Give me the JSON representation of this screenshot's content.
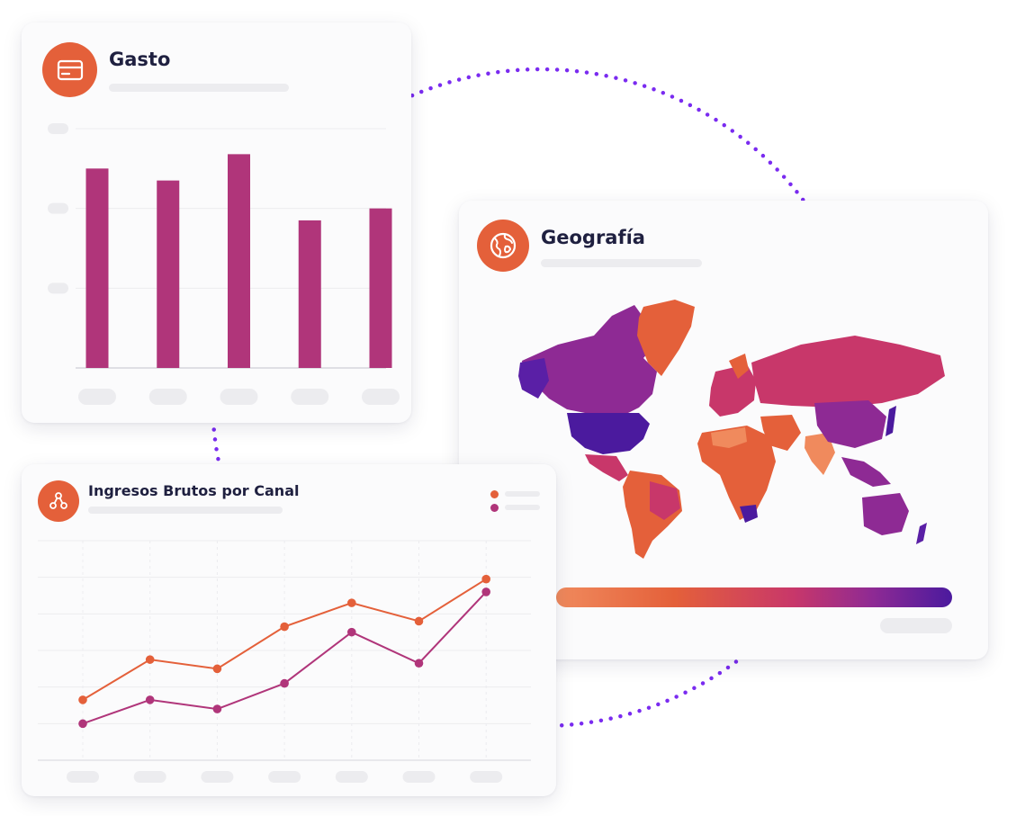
{
  "colors": {
    "orange": "#e4603a",
    "magenta": "#b0357a",
    "purple_dark": "#4b1a9e",
    "connector": "#7a2bf0",
    "skeleton": "#ececef"
  },
  "cards": {
    "gasto": {
      "title": "Gasto",
      "icon": "credit-card-icon"
    },
    "geografia": {
      "title": "Geografía",
      "icon": "globe-icon"
    },
    "ingresos": {
      "title": "Ingresos Brutos por Canal",
      "icon": "network-icon"
    }
  },
  "chart_data": [
    {
      "type": "bar",
      "categories": [
        "",
        "",
        "",
        "",
        ""
      ],
      "values": [
        2.5,
        2.35,
        2.68,
        1.85,
        2.0
      ],
      "ylim": [
        0,
        3
      ],
      "grid": true,
      "color": "#b0357a"
    },
    {
      "type": "line",
      "x": [
        "",
        "",
        "",
        "",
        "",
        "",
        ""
      ],
      "series": [
        {
          "values": [
            1.65,
            2.75,
            2.5,
            3.65,
            4.3,
            3.8,
            4.95
          ],
          "color": "#e4603a"
        },
        {
          "values": [
            1.0,
            1.65,
            1.4,
            2.1,
            3.5,
            2.65,
            4.6
          ],
          "color": "#b0357a"
        }
      ],
      "ylim": [
        0,
        6
      ],
      "grid": true,
      "legend": "top-right"
    },
    {
      "type": "heatmap",
      "subtype": "choropleth-world-map",
      "color_scale": [
        "#f08a5d",
        "#e4603a",
        "#c8376a",
        "#8e2a94",
        "#4b1a9e"
      ],
      "legend": "bottom"
    }
  ]
}
